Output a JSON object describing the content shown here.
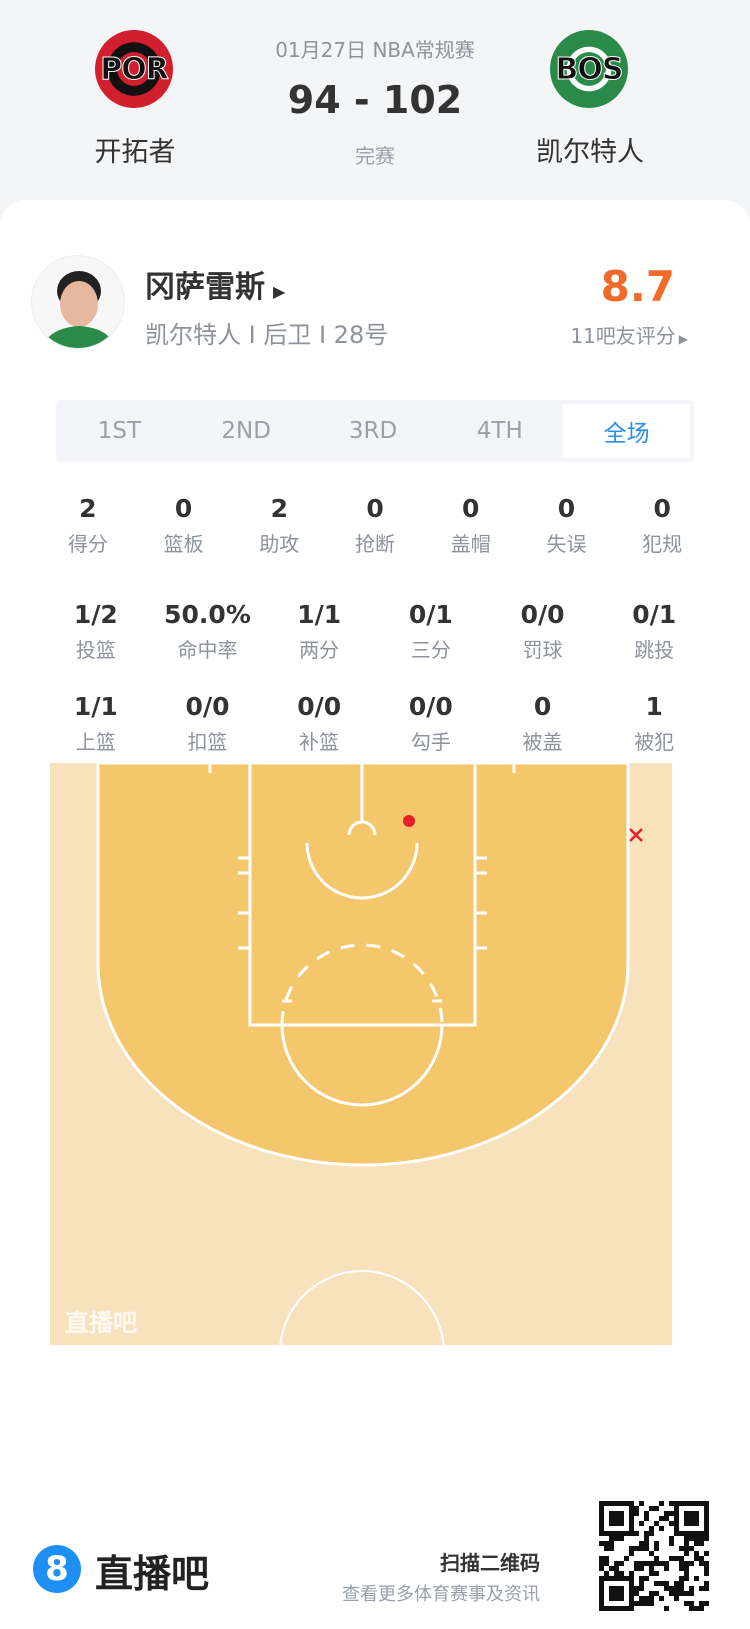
{
  "game": {
    "date_league": "01月27日 NBA常规赛",
    "score": "94 - 102",
    "status": "完赛",
    "home": {
      "abbr": "POR",
      "name": "开拓者",
      "color": "#d21f2e"
    },
    "away": {
      "abbr": "BOS",
      "name": "凯尔特人",
      "color": "#2a8a4a"
    }
  },
  "player": {
    "name": "冈萨雷斯",
    "info": "凯尔特人 I 后卫 I 28号",
    "rating": "8.7",
    "rating_color": "#f06a2a",
    "rating_label": "11吧友评分"
  },
  "tabs": [
    {
      "label": "1ST"
    },
    {
      "label": "2ND"
    },
    {
      "label": "3RD"
    },
    {
      "label": "4TH"
    },
    {
      "label": "全场",
      "active": true
    }
  ],
  "stats_row1": [
    {
      "v": "2",
      "l": "得分"
    },
    {
      "v": "0",
      "l": "篮板"
    },
    {
      "v": "2",
      "l": "助攻"
    },
    {
      "v": "0",
      "l": "抢断"
    },
    {
      "v": "0",
      "l": "盖帽"
    },
    {
      "v": "0",
      "l": "失误"
    },
    {
      "v": "0",
      "l": "犯规"
    }
  ],
  "stats_row2": [
    {
      "v": "1/2",
      "l": "投篮"
    },
    {
      "v": "50.0%",
      "l": "命中率"
    },
    {
      "v": "1/1",
      "l": "两分"
    },
    {
      "v": "0/1",
      "l": "三分"
    },
    {
      "v": "0/0",
      "l": "罚球"
    },
    {
      "v": "0/1",
      "l": "跳投"
    }
  ],
  "stats_row3": [
    {
      "v": "1/1",
      "l": "上篮"
    },
    {
      "v": "0/0",
      "l": "扣篮"
    },
    {
      "v": "0/0",
      "l": "补篮"
    },
    {
      "v": "0/0",
      "l": "勾手"
    },
    {
      "v": "0",
      "l": "被盖"
    },
    {
      "v": "1",
      "l": "被犯"
    }
  ],
  "shot_chart": {
    "shots": [
      {
        "result": "made",
        "color": "#e8202a"
      },
      {
        "result": "missed",
        "color": "#e8202a"
      }
    ],
    "watermark": "直播吧"
  },
  "footer": {
    "brand": "直播吧",
    "brand_color": "#1e8ff5",
    "scan_title": "扫描二维码",
    "scan_sub": "查看更多体育赛事及资讯"
  }
}
